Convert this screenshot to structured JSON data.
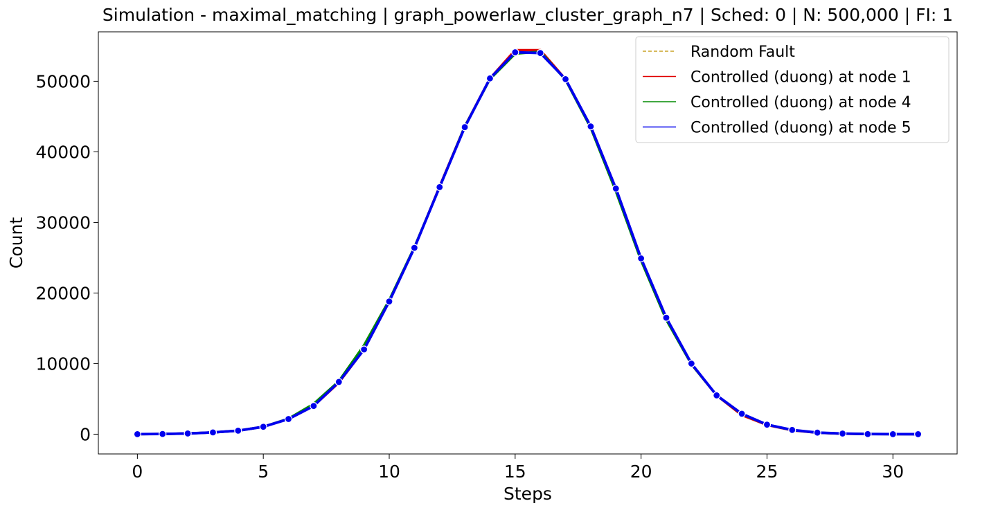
{
  "chart_data": {
    "type": "line",
    "title": "Simulation - maximal_matching | graph_powerlaw_cluster_graph_n7 | Sched: 0 | N: 500,000 | FI: 1",
    "xlabel": "Steps",
    "ylabel": "Count",
    "xlim": [
      -1.55,
      32.55
    ],
    "ylim": [
      -2800,
      57000
    ],
    "xticks": [
      0,
      5,
      10,
      15,
      20,
      25,
      30
    ],
    "yticks": [
      0,
      10000,
      20000,
      30000,
      40000,
      50000
    ],
    "grid": false,
    "legend_position": "top-right",
    "x": [
      0,
      1,
      2,
      3,
      4,
      5,
      6,
      7,
      8,
      9,
      10,
      11,
      12,
      13,
      14,
      15,
      16,
      17,
      18,
      19,
      20,
      21,
      22,
      23,
      24,
      25,
      26,
      27,
      28,
      29,
      30,
      31
    ],
    "series": [
      {
        "name": "Random Fault",
        "color": "#c9a227",
        "style": "dashed",
        "values": [
          5,
          30,
          100,
          250,
          500,
          1050,
          2150,
          4100,
          7300,
          12000,
          18700,
          26300,
          35000,
          43500,
          50300,
          54200,
          54100,
          50200,
          43500,
          34700,
          24800,
          16300,
          9900,
          5500,
          2800,
          1300,
          560,
          210,
          70,
          20,
          5,
          1
        ]
      },
      {
        "name": "Controlled (duong) at node 1",
        "color": "#e00000",
        "style": "solid",
        "values": [
          5,
          30,
          100,
          250,
          500,
          1050,
          2150,
          4000,
          7300,
          12000,
          18800,
          26400,
          35100,
          43600,
          50400,
          54400,
          54400,
          50300,
          43600,
          34800,
          24900,
          16400,
          9900,
          5500,
          2700,
          1300,
          550,
          200,
          70,
          20,
          5,
          1
        ]
      },
      {
        "name": "Controlled (duong) at node 4",
        "color": "#008a00",
        "style": "solid",
        "values": [
          5,
          30,
          100,
          250,
          500,
          1050,
          2200,
          4300,
          7500,
          12600,
          19000,
          26500,
          35000,
          43600,
          50300,
          53900,
          54200,
          50200,
          43400,
          34400,
          24600,
          16200,
          9900,
          5500,
          2850,
          1350,
          580,
          220,
          80,
          25,
          6,
          1
        ]
      },
      {
        "name": "Controlled (duong) at node 5",
        "color": "#0000ee",
        "style": "solid",
        "markers": true,
        "values": [
          5,
          30,
          100,
          250,
          500,
          1050,
          2150,
          4000,
          7400,
          12000,
          18800,
          26400,
          35000,
          43500,
          50400,
          54100,
          54000,
          50300,
          43600,
          34800,
          24900,
          16500,
          10000,
          5500,
          2900,
          1350,
          600,
          220,
          90,
          20,
          5,
          1
        ]
      }
    ]
  }
}
